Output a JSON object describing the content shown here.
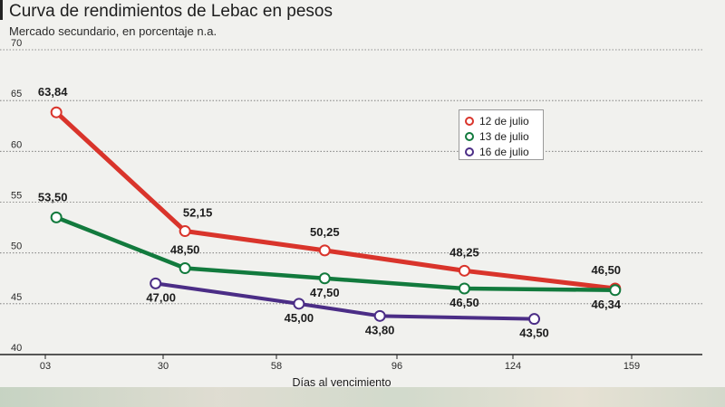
{
  "chart_data": {
    "type": "line",
    "title": "Curva de rendimientos de Lebac en pesos",
    "subtitle": "Mercado secundario, en porcentaje n.a.",
    "xlabel": "Días al vencimiento",
    "ylabel": "",
    "x_ticks": [
      "03",
      "30",
      "58",
      "96",
      "124",
      "159"
    ],
    "y_ticks": [
      40,
      45,
      50,
      55,
      60,
      65,
      70
    ],
    "ylim": [
      40,
      70
    ],
    "xlim": [
      0,
      159
    ],
    "legend_position": "top-right",
    "series": [
      {
        "name": "12 de julio",
        "color": "#d9342b",
        "points": [
          {
            "x": 3,
            "y": 63.84,
            "label": "63,84"
          },
          {
            "x": 38,
            "y": 52.15,
            "label": "52,15"
          },
          {
            "x": 76,
            "y": 50.25,
            "label": "50,25"
          },
          {
            "x": 114,
            "y": 48.25,
            "label": "48,25"
          },
          {
            "x": 155,
            "y": 46.5,
            "label": "46,50"
          }
        ]
      },
      {
        "name": "13 de julio",
        "color": "#127a3d",
        "points": [
          {
            "x": 3,
            "y": 53.5,
            "label": "53,50"
          },
          {
            "x": 38,
            "y": 48.5,
            "label": "48,50"
          },
          {
            "x": 76,
            "y": 47.5,
            "label": "47,50"
          },
          {
            "x": 114,
            "y": 46.5,
            "label": "46,50"
          },
          {
            "x": 155,
            "y": 46.34,
            "label": "46,34"
          }
        ]
      },
      {
        "name": "16 de julio",
        "color": "#4b2d86",
        "points": [
          {
            "x": 30,
            "y": 47.0,
            "label": "47,00"
          },
          {
            "x": 69,
            "y": 45.0,
            "label": "45,00"
          },
          {
            "x": 91,
            "y": 43.8,
            "label": "43,80"
          },
          {
            "x": 133,
            "y": 43.5,
            "label": "43,50"
          }
        ]
      }
    ]
  }
}
